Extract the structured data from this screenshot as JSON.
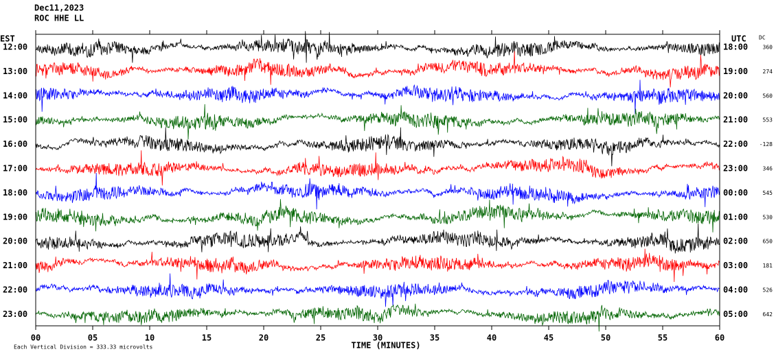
{
  "chart_data": {
    "type": "helicorder",
    "title": "Dec11,2023",
    "subtitle": "ROC HHE LL",
    "left_axis_label": "EST",
    "right_axis_label": "UTC",
    "dc_label": "DC",
    "xlabel": "TIME (MINUTES)",
    "scale_note": "Each Vertical Division =  333.33 microvolts",
    "trace_colors": [
      "#000000",
      "#ff0000",
      "#0000ff",
      "#006400"
    ],
    "xlim": [
      0,
      60
    ],
    "xticks": [
      {
        "value": 0,
        "label": "00"
      },
      {
        "value": 5,
        "label": "05"
      },
      10,
      15,
      20,
      25,
      30,
      35,
      40,
      45,
      50,
      55,
      60
    ],
    "rows": [
      {
        "est": "12:00",
        "utc": "18:00",
        "dc": 360
      },
      {
        "est": "13:00",
        "utc": "19:00",
        "dc": 274
      },
      {
        "est": "14:00",
        "utc": "20:00",
        "dc": 560
      },
      {
        "est": "15:00",
        "utc": "21:00",
        "dc": 553
      },
      {
        "est": "16:00",
        "utc": "22:00",
        "dc": -128
      },
      {
        "est": "17:00",
        "utc": "23:00",
        "dc": 346
      },
      {
        "est": "18:00",
        "utc": "00:00",
        "dc": 545
      },
      {
        "est": "19:00",
        "utc": "01:00",
        "dc": 530
      },
      {
        "est": "20:00",
        "utc": "02:00",
        "dc": 650
      },
      {
        "est": "21:00",
        "utc": "03:00",
        "dc": 181
      },
      {
        "est": "22:00",
        "utc": "04:00",
        "dc": 526
      },
      {
        "est": "23:00",
        "utc": "05:00",
        "dc": 642
      }
    ]
  }
}
